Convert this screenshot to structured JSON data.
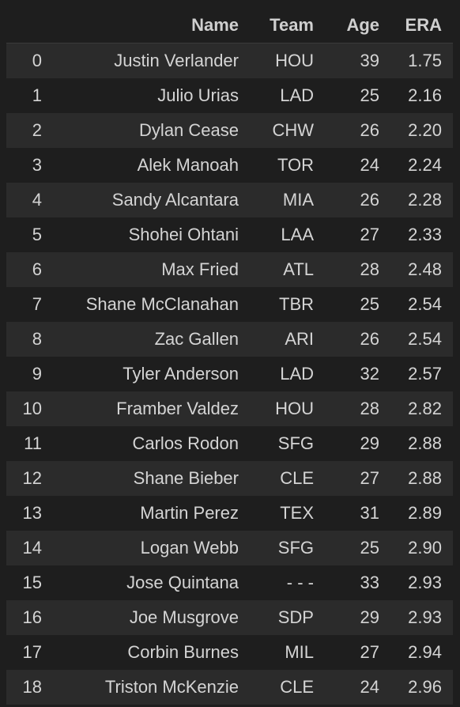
{
  "table": {
    "columns": [
      "",
      "Name",
      "Team",
      "Age",
      "ERA"
    ],
    "rows": [
      {
        "index": "0",
        "name": "Justin Verlander",
        "team": "HOU",
        "age": "39",
        "era": "1.75"
      },
      {
        "index": "1",
        "name": "Julio Urias",
        "team": "LAD",
        "age": "25",
        "era": "2.16"
      },
      {
        "index": "2",
        "name": "Dylan Cease",
        "team": "CHW",
        "age": "26",
        "era": "2.20"
      },
      {
        "index": "3",
        "name": "Alek Manoah",
        "team": "TOR",
        "age": "24",
        "era": "2.24"
      },
      {
        "index": "4",
        "name": "Sandy Alcantara",
        "team": "MIA",
        "age": "26",
        "era": "2.28"
      },
      {
        "index": "5",
        "name": "Shohei Ohtani",
        "team": "LAA",
        "age": "27",
        "era": "2.33"
      },
      {
        "index": "6",
        "name": "Max Fried",
        "team": "ATL",
        "age": "28",
        "era": "2.48"
      },
      {
        "index": "7",
        "name": "Shane McClanahan",
        "team": "TBR",
        "age": "25",
        "era": "2.54"
      },
      {
        "index": "8",
        "name": "Zac Gallen",
        "team": "ARI",
        "age": "26",
        "era": "2.54"
      },
      {
        "index": "9",
        "name": "Tyler Anderson",
        "team": "LAD",
        "age": "32",
        "era": "2.57"
      },
      {
        "index": "10",
        "name": "Framber Valdez",
        "team": "HOU",
        "age": "28",
        "era": "2.82"
      },
      {
        "index": "11",
        "name": "Carlos Rodon",
        "team": "SFG",
        "age": "29",
        "era": "2.88"
      },
      {
        "index": "12",
        "name": "Shane Bieber",
        "team": "CLE",
        "age": "27",
        "era": "2.88"
      },
      {
        "index": "13",
        "name": "Martin Perez",
        "team": "TEX",
        "age": "31",
        "era": "2.89"
      },
      {
        "index": "14",
        "name": "Logan Webb",
        "team": "SFG",
        "age": "25",
        "era": "2.90"
      },
      {
        "index": "15",
        "name": "Jose Quintana",
        "team": "- - -",
        "age": "33",
        "era": "2.93"
      },
      {
        "index": "16",
        "name": "Joe Musgrove",
        "team": "SDP",
        "age": "29",
        "era": "2.93"
      },
      {
        "index": "17",
        "name": "Corbin Burnes",
        "team": "MIL",
        "age": "27",
        "era": "2.94"
      },
      {
        "index": "18",
        "name": "Triston McKenzie",
        "team": "CLE",
        "age": "24",
        "era": "2.96"
      }
    ]
  }
}
